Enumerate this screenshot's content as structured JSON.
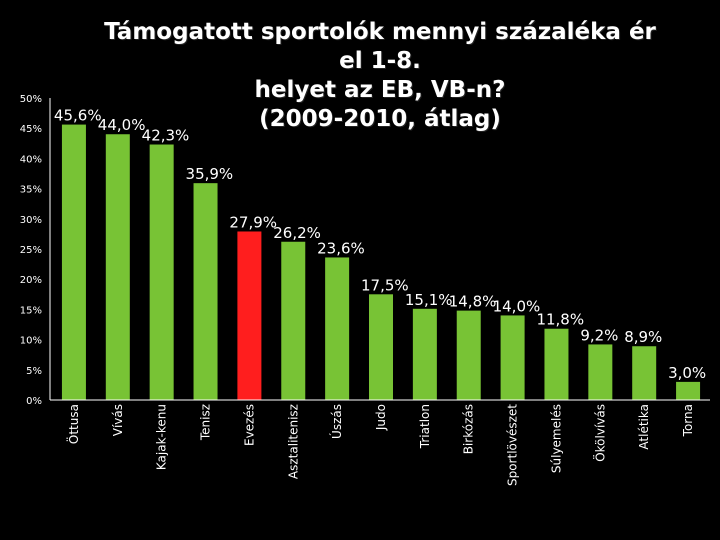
{
  "chart_data": {
    "type": "bar",
    "title": "Támogatott sportolók mennyi százaléka ér el 1-8.\nhelyet az EB, VB-n?\n(2009-2010, átlag)",
    "categories": [
      "Öttusa",
      "Vívás",
      "Kajak-kenu",
      "Tenisz",
      "Evezés",
      "Asztalitenisz",
      "Úszás",
      "Judo",
      "Triatlon",
      "Birkózás",
      "Sportlövészet",
      "Súlyemelés",
      "Ökölvívás",
      "Atlétika",
      "Torna"
    ],
    "values": [
      45.6,
      44.0,
      42.3,
      35.9,
      27.9,
      26.2,
      23.6,
      17.5,
      15.1,
      14.8,
      14.0,
      11.8,
      9.2,
      8.9,
      3.0
    ],
    "data_labels": [
      "45,6%",
      "44,0%",
      "42,3%",
      "35,9%",
      "27,9%",
      "26,2%",
      "23,6%",
      "17,5%",
      "15,1%",
      "14,8%",
      "14,0%",
      "11,8%",
      "9,2%",
      "8,9%",
      "3,0%"
    ],
    "ylim": [
      0,
      50
    ],
    "yticks": [
      "0%",
      "5%",
      "10%",
      "15%",
      "20%",
      "25%",
      "30%",
      "35%",
      "40%",
      "45%",
      "50%"
    ],
    "colors": {
      "default": "#78c335",
      "highlight": "#ff1e1e",
      "highlight_category": "Evezés"
    },
    "grid": false,
    "legend": "none",
    "xlabel": "",
    "ylabel": ""
  }
}
